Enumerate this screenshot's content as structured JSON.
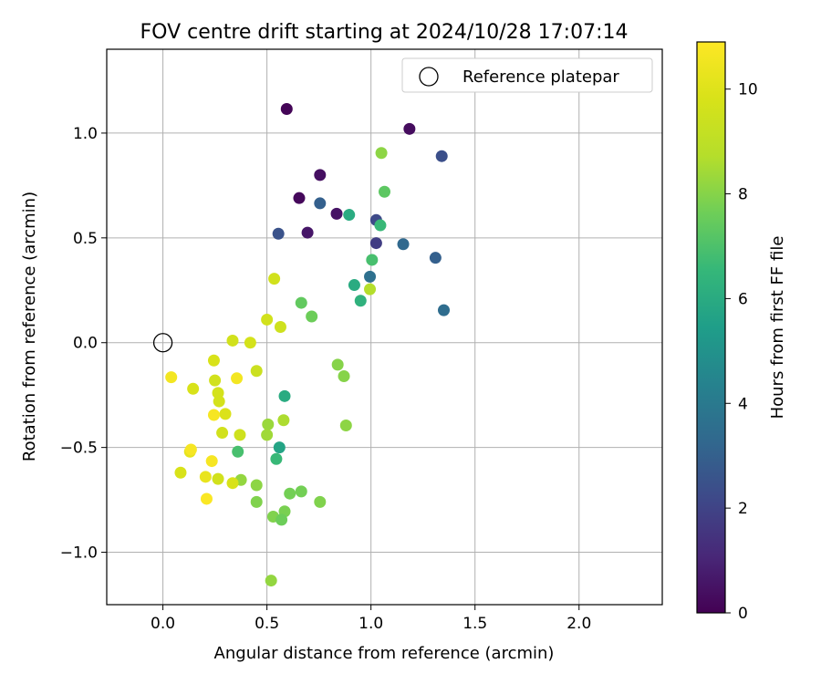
{
  "chart_data": {
    "type": "scatter",
    "title": "FOV centre drift starting at 2024/10/28 17:07:14",
    "xlabel": "Angular distance from reference (arcmin)",
    "ylabel": "Rotation from reference (arcmin)",
    "xlim": [
      -0.27,
      2.4
    ],
    "ylim": [
      -1.25,
      1.4
    ],
    "xticks": [
      0.0,
      0.5,
      1.0,
      1.5,
      2.0
    ],
    "xtick_labels": [
      "0.0",
      "0.5",
      "1.0",
      "1.5",
      "2.0"
    ],
    "yticks": [
      -1.0,
      -0.5,
      0.0,
      0.5,
      1.0
    ],
    "ytick_labels": [
      "−1.0",
      "−0.5",
      "0.0",
      "0.5",
      "1.0"
    ],
    "grid": true,
    "legend": {
      "position": "top-right",
      "label": "Reference platepar"
    },
    "reference_point": {
      "x": 0.0,
      "y": 0.0
    },
    "colorbar": {
      "label": "Hours from first FF file",
      "colormap": "viridis",
      "min": 0,
      "max": 10.9,
      "ticks": [
        0,
        2,
        4,
        6,
        8,
        10
      ],
      "tick_labels": [
        "0",
        "2",
        "4",
        "6",
        "8",
        "10"
      ]
    },
    "points": [
      {
        "x": 0.595,
        "y": 1.115,
        "hours": 0.1
      },
      {
        "x": 1.185,
        "y": 1.02,
        "hours": 0.3
      },
      {
        "x": 0.755,
        "y": 0.8,
        "hours": 0.4
      },
      {
        "x": 0.655,
        "y": 0.69,
        "hours": 0.2
      },
      {
        "x": 0.835,
        "y": 0.615,
        "hours": 0.5
      },
      {
        "x": 0.695,
        "y": 0.525,
        "hours": 0.6
      },
      {
        "x": 1.34,
        "y": 0.89,
        "hours": 2.4
      },
      {
        "x": 0.755,
        "y": 0.665,
        "hours": 3.0
      },
      {
        "x": 1.025,
        "y": 0.585,
        "hours": 2.2
      },
      {
        "x": 0.555,
        "y": 0.52,
        "hours": 2.5
      },
      {
        "x": 1.025,
        "y": 0.475,
        "hours": 1.8
      },
      {
        "x": 1.155,
        "y": 0.47,
        "hours": 3.3
      },
      {
        "x": 1.31,
        "y": 0.405,
        "hours": 3.0
      },
      {
        "x": 0.995,
        "y": 0.315,
        "hours": 3.6
      },
      {
        "x": 1.35,
        "y": 0.155,
        "hours": 3.5
      },
      {
        "x": 0.895,
        "y": 0.61,
        "hours": 6.0
      },
      {
        "x": 1.045,
        "y": 0.56,
        "hours": 6.6
      },
      {
        "x": 1.065,
        "y": 0.72,
        "hours": 7.3
      },
      {
        "x": 1.05,
        "y": 0.905,
        "hours": 8.1
      },
      {
        "x": 1.005,
        "y": 0.395,
        "hours": 6.9
      },
      {
        "x": 0.92,
        "y": 0.275,
        "hours": 6.0
      },
      {
        "x": 0.95,
        "y": 0.2,
        "hours": 6.3
      },
      {
        "x": 0.665,
        "y": 0.19,
        "hours": 7.4
      },
      {
        "x": 0.715,
        "y": 0.125,
        "hours": 7.6
      },
      {
        "x": 0.995,
        "y": 0.255,
        "hours": 8.7
      },
      {
        "x": 0.585,
        "y": -0.255,
        "hours": 6.0
      },
      {
        "x": 0.56,
        "y": -0.5,
        "hours": 5.7
      },
      {
        "x": 0.36,
        "y": -0.52,
        "hours": 6.9
      },
      {
        "x": 0.545,
        "y": -0.555,
        "hours": 6.6
      },
      {
        "x": 0.84,
        "y": -0.105,
        "hours": 8.0
      },
      {
        "x": 0.87,
        "y": -0.16,
        "hours": 8.0
      },
      {
        "x": 0.88,
        "y": -0.395,
        "hours": 8.1
      },
      {
        "x": 0.505,
        "y": -0.39,
        "hours": 8.3
      },
      {
        "x": 0.58,
        "y": -0.37,
        "hours": 8.6
      },
      {
        "x": 0.5,
        "y": -0.44,
        "hours": 8.4
      },
      {
        "x": 0.375,
        "y": -0.655,
        "hours": 8.2
      },
      {
        "x": 0.45,
        "y": -0.68,
        "hours": 8.1
      },
      {
        "x": 0.45,
        "y": -0.76,
        "hours": 7.9
      },
      {
        "x": 0.61,
        "y": -0.72,
        "hours": 7.7
      },
      {
        "x": 0.665,
        "y": -0.71,
        "hours": 7.7
      },
      {
        "x": 0.755,
        "y": -0.76,
        "hours": 7.9
      },
      {
        "x": 0.585,
        "y": -0.805,
        "hours": 7.8
      },
      {
        "x": 0.53,
        "y": -0.83,
        "hours": 7.9
      },
      {
        "x": 0.57,
        "y": -0.845,
        "hours": 7.6
      },
      {
        "x": 0.52,
        "y": -1.135,
        "hours": 8.2
      },
      {
        "x": 0.535,
        "y": 0.305,
        "hours": 9.6
      },
      {
        "x": 0.5,
        "y": 0.11,
        "hours": 9.6
      },
      {
        "x": 0.565,
        "y": 0.075,
        "hours": 9.5
      },
      {
        "x": 0.335,
        "y": 0.01,
        "hours": 9.6
      },
      {
        "x": 0.42,
        "y": 0.0,
        "hours": 9.7
      },
      {
        "x": 0.245,
        "y": -0.085,
        "hours": 9.8
      },
      {
        "x": 0.45,
        "y": -0.135,
        "hours": 9.4
      },
      {
        "x": 0.25,
        "y": -0.18,
        "hours": 9.6
      },
      {
        "x": 0.265,
        "y": -0.24,
        "hours": 9.7
      },
      {
        "x": 0.27,
        "y": -0.28,
        "hours": 9.7
      },
      {
        "x": 0.145,
        "y": -0.22,
        "hours": 9.8
      },
      {
        "x": 0.3,
        "y": -0.34,
        "hours": 9.9
      },
      {
        "x": 0.37,
        "y": -0.44,
        "hours": 9.5
      },
      {
        "x": 0.285,
        "y": -0.43,
        "hours": 9.6
      },
      {
        "x": 0.085,
        "y": -0.62,
        "hours": 9.8
      },
      {
        "x": 0.265,
        "y": -0.65,
        "hours": 9.6
      },
      {
        "x": 0.335,
        "y": -0.67,
        "hours": 9.8
      },
      {
        "x": 0.13,
        "y": -0.52,
        "hours": 10.2
      },
      {
        "x": 0.04,
        "y": -0.165,
        "hours": 10.6
      },
      {
        "x": 0.355,
        "y": -0.17,
        "hours": 10.6
      },
      {
        "x": 0.245,
        "y": -0.345,
        "hours": 10.7
      },
      {
        "x": 0.135,
        "y": -0.51,
        "hours": 10.7
      },
      {
        "x": 0.235,
        "y": -0.565,
        "hours": 10.7
      },
      {
        "x": 0.205,
        "y": -0.64,
        "hours": 10.3
      },
      {
        "x": 0.21,
        "y": -0.745,
        "hours": 10.8
      }
    ]
  }
}
